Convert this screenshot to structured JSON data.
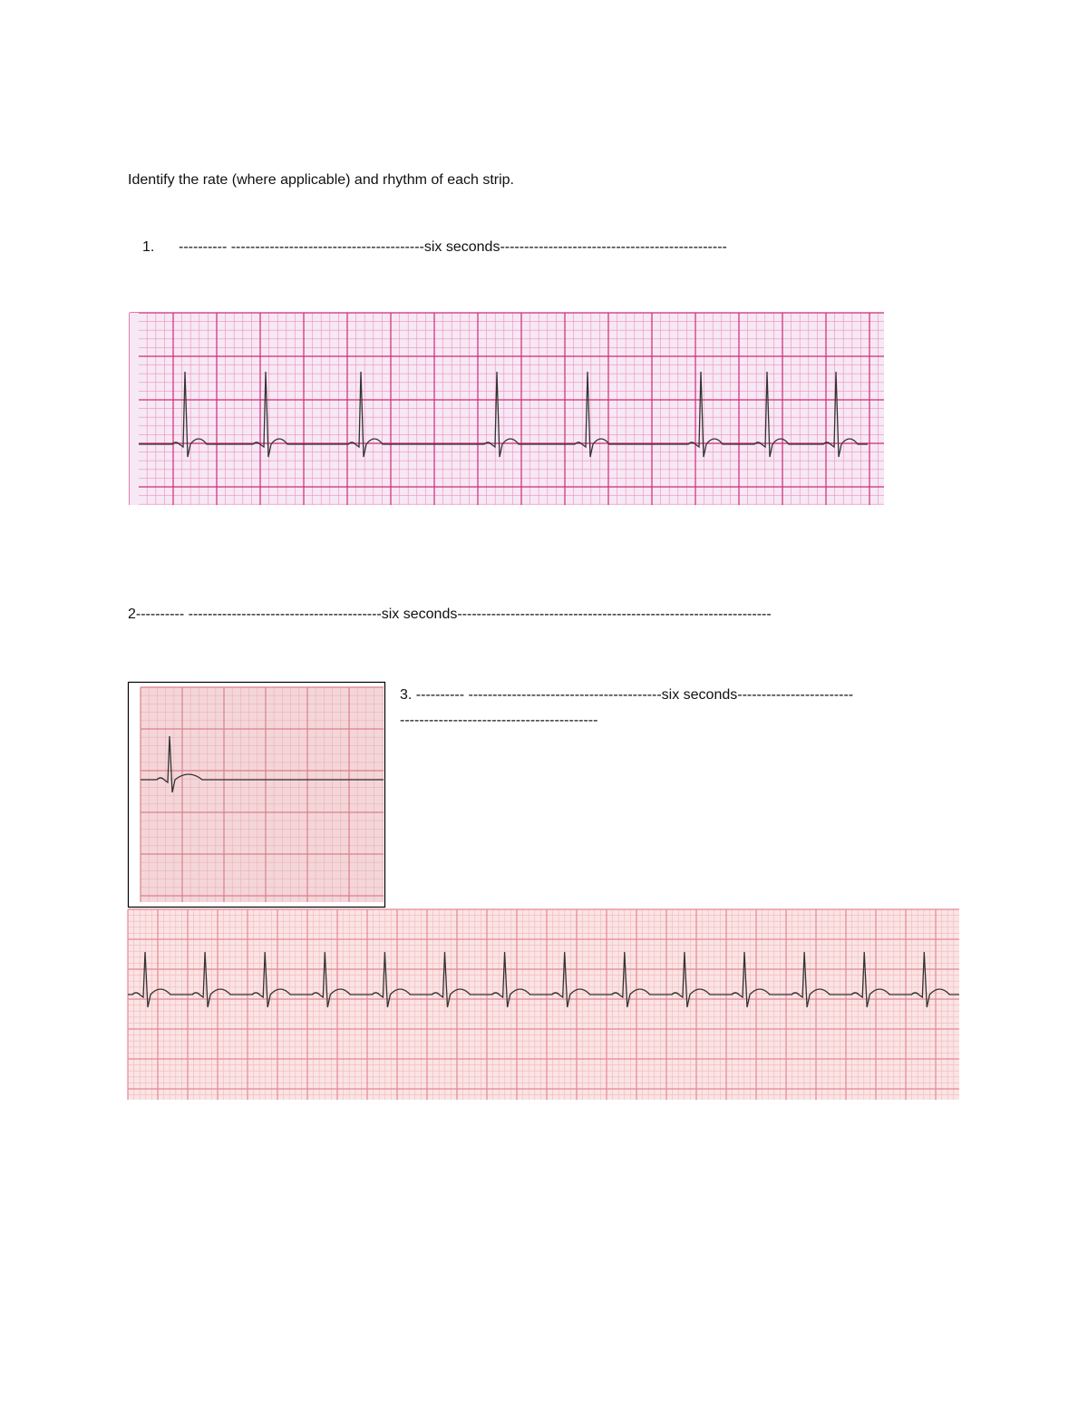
{
  "instruction": "Identify the rate (where applicable) and rhythm of each strip.",
  "items": [
    {
      "number": "1.",
      "text": "---------- ----------------------------------------six seconds-----------------------------------------------"
    },
    {
      "text": "2---------- ----------------------------------------six seconds-----------------------------------------------------------------"
    },
    {
      "number": "3.",
      "text": "---------- ----------------------------------------six seconds-----------------------------------------------------------------"
    }
  ]
}
